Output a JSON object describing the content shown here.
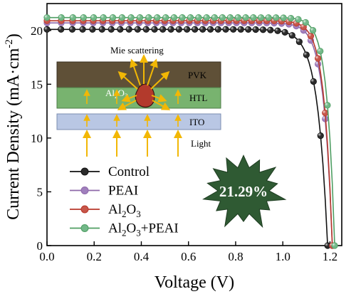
{
  "chart_data": {
    "type": "line",
    "xlabel": "Voltage (V)",
    "ylabel_main": "Current Density (mA·cm",
    "ylabel_sup": "-2",
    "ylabel_close": ")",
    "xlim": [
      0.0,
      1.25
    ],
    "ylim": [
      0,
      22.5
    ],
    "xticks": [
      0.0,
      0.2,
      0.4,
      0.6,
      0.8,
      1.0,
      1.2
    ],
    "xtick_labels": [
      "0.0",
      "0.2",
      "0.4",
      "0.6",
      "0.8",
      "1.0",
      "1.2"
    ],
    "yticks": [
      0,
      5,
      10,
      15,
      20
    ],
    "ytick_labels": [
      "0",
      "5",
      "10",
      "15",
      "20"
    ],
    "grid": false,
    "legend_position": "bottom-left",
    "series": [
      {
        "name": "Control",
        "sub": "",
        "after": "",
        "color": "#111111",
        "fill": "#2b2b2b",
        "jsc": 20.1,
        "voc": 1.19,
        "k": 0.042,
        "x": [
          0.0,
          0.1,
          0.2,
          0.3,
          0.4,
          0.5,
          0.6,
          0.7,
          0.8,
          0.9,
          1.0,
          1.05,
          1.1,
          1.15,
          1.19
        ],
        "y": [
          20.1,
          20.05,
          20.0,
          19.95,
          19.9,
          19.85,
          19.75,
          19.6,
          19.3,
          18.6,
          17.0,
          15.3,
          11.8,
          6.3,
          0
        ]
      },
      {
        "name": "PEAI",
        "sub": "",
        "after": "",
        "color": "#8e68a9",
        "fill": "#a07fbd",
        "jsc": 20.7,
        "voc": 1.21,
        "k": 0.036,
        "x": [
          0.0,
          0.1,
          0.2,
          0.3,
          0.4,
          0.5,
          0.6,
          0.7,
          0.8,
          0.9,
          1.0,
          1.05,
          1.1,
          1.15,
          1.21
        ],
        "y": [
          20.7,
          20.65,
          20.6,
          20.55,
          20.5,
          20.45,
          20.4,
          20.3,
          20.1,
          19.6,
          18.5,
          17.3,
          14.9,
          10.3,
          0
        ]
      },
      {
        "name": "Al",
        "sub": "2",
        "after": "O",
        "sub2": "3",
        "after2": "",
        "color": "#b8372a",
        "fill": "#c7564a",
        "jsc": 20.9,
        "voc": 1.21,
        "k": 0.034,
        "x": [
          0.0,
          0.1,
          0.2,
          0.3,
          0.4,
          0.5,
          0.6,
          0.7,
          0.8,
          0.9,
          1.0,
          1.05,
          1.1,
          1.15,
          1.21
        ],
        "y": [
          20.9,
          20.85,
          20.8,
          20.75,
          20.7,
          20.65,
          20.6,
          20.5,
          20.35,
          19.9,
          18.9,
          17.8,
          15.6,
          11.1,
          0
        ]
      },
      {
        "name": "Al",
        "sub": "2",
        "after": "O",
        "sub2": "3",
        "after2": "+PEAI",
        "color": "#4f9e63",
        "fill": "#72b888",
        "jsc": 21.2,
        "voc": 1.22,
        "k": 0.032,
        "x": [
          0.0,
          0.1,
          0.2,
          0.3,
          0.4,
          0.5,
          0.6,
          0.7,
          0.8,
          0.9,
          1.0,
          1.05,
          1.1,
          1.15,
          1.22
        ],
        "y": [
          21.2,
          21.15,
          21.1,
          21.05,
          21.0,
          20.95,
          20.9,
          20.8,
          20.65,
          20.25,
          19.4,
          18.4,
          16.4,
          12.1,
          0
        ]
      }
    ],
    "annotations": {
      "pce": "21.29%",
      "mie": "Mie scattering",
      "pvk": "PVK",
      "htl": "HTL",
      "ito": "ITO",
      "light": "Light",
      "al_main": "Al",
      "al_sub1": "2",
      "al_mid": "O",
      "al_sub2": "3"
    },
    "colors": {
      "pvk_layer": "#5f5037",
      "htl_layer": "#78b36f",
      "ito_layer": "#b9c7e4",
      "particle": "#b33a2c",
      "arrows": "#f2b705",
      "star": "#2f5a33"
    }
  }
}
